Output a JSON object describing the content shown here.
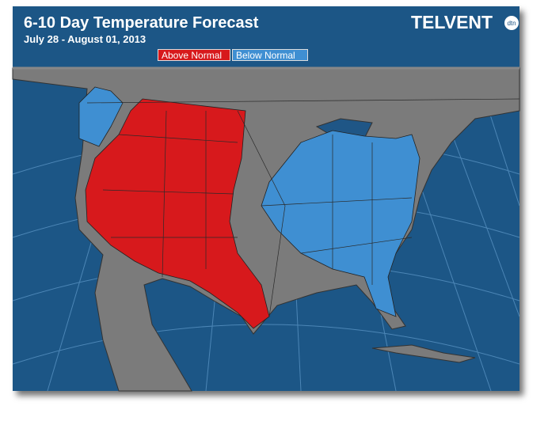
{
  "header": {
    "title": "6-10 Day Temperature Forecast",
    "subtitle": "July 28 - August 01, 2013",
    "logo": "TELVENT",
    "logo_badge": "dtn"
  },
  "legend": [
    {
      "label": "Above Normal",
      "color": "#d7191c"
    },
    {
      "label": "Below Normal",
      "color": "#3f8fd2"
    }
  ]
}
